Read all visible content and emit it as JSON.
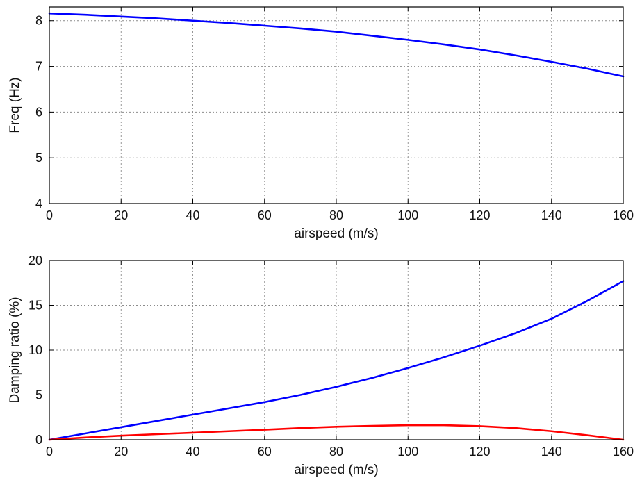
{
  "chart_data": [
    {
      "type": "line",
      "title": "",
      "xlabel": "airspeed (m/s)",
      "ylabel": "Freq (Hz)",
      "xlim": [
        0,
        160
      ],
      "ylim": [
        4,
        8.3
      ],
      "xticks": [
        0,
        20,
        40,
        60,
        80,
        100,
        120,
        140,
        160
      ],
      "yticks": [
        4,
        5,
        6,
        7,
        8
      ],
      "grid": true,
      "series": [
        {
          "color": "#0000ff",
          "x": [
            0,
            10,
            20,
            30,
            40,
            50,
            60,
            70,
            80,
            90,
            100,
            110,
            120,
            130,
            140,
            150,
            160
          ],
          "y": [
            8.16,
            8.13,
            8.09,
            8.05,
            8.0,
            7.95,
            7.89,
            7.83,
            7.76,
            7.67,
            7.58,
            7.48,
            7.37,
            7.24,
            7.1,
            6.95,
            6.78
          ]
        }
      ]
    },
    {
      "type": "line",
      "title": "",
      "xlabel": "airspeed (m/s)",
      "ylabel": "Damping ratio (%)",
      "xlim": [
        0,
        160
      ],
      "ylim": [
        0,
        20
      ],
      "xticks": [
        0,
        20,
        40,
        60,
        80,
        100,
        120,
        140,
        160
      ],
      "yticks": [
        0,
        5,
        10,
        15,
        20
      ],
      "grid": true,
      "series": [
        {
          "color": "#0000ff",
          "x": [
            0,
            10,
            20,
            30,
            40,
            50,
            60,
            70,
            80,
            90,
            100,
            110,
            120,
            130,
            140,
            150,
            160
          ],
          "y": [
            0,
            0.7,
            1.4,
            2.1,
            2.8,
            3.5,
            4.2,
            5.0,
            5.9,
            6.9,
            8.0,
            9.2,
            10.5,
            11.9,
            13.5,
            15.5,
            17.7
          ]
        },
        {
          "color": "#ff0000",
          "x": [
            0,
            10,
            20,
            30,
            40,
            50,
            60,
            70,
            80,
            90,
            100,
            110,
            120,
            130,
            140,
            150,
            160
          ],
          "y": [
            0,
            0.25,
            0.45,
            0.62,
            0.78,
            0.95,
            1.12,
            1.3,
            1.45,
            1.55,
            1.62,
            1.62,
            1.52,
            1.3,
            0.95,
            0.5,
            0
          ]
        }
      ]
    }
  ]
}
